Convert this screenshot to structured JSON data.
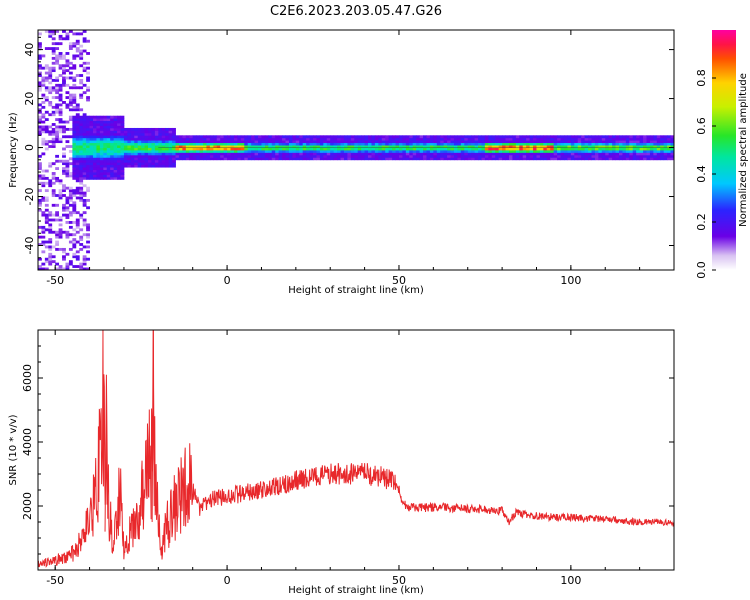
{
  "figure_title": "C2E6.2023.203.05.47.G26",
  "chart_data": [
    {
      "type": "heatmap",
      "title": "",
      "xlabel": "Height of straight line (km)",
      "ylabel": "Frequency (Hz)",
      "xlim": [
        -55,
        130
      ],
      "ylim": [
        -50,
        48
      ],
      "xticks": [
        -50,
        0,
        50,
        100
      ],
      "xtick_labels": [
        "-50",
        "0",
        "50",
        "100"
      ],
      "yticks": [
        -40,
        -20,
        0,
        20,
        40
      ],
      "ytick_labels": [
        "-40",
        "-20",
        "0",
        "20",
        "40"
      ],
      "grid": false,
      "colormap": "hsv-like (violet to red)",
      "colorbar": {
        "label": "Normalized spectral amplitude",
        "range": [
          0,
          1
        ],
        "ticks": [
          0.0,
          0.2,
          0.4,
          0.6,
          0.8
        ],
        "tick_labels": [
          "0.0",
          "0.2",
          "0.4",
          "0.6",
          "0.8"
        ]
      },
      "ridge": {
        "frequency_hz": 0,
        "segments": [
          {
            "x_start": -45,
            "x_end": -30,
            "amplitude": 0.5,
            "spread_hz": 8
          },
          {
            "x_start": -30,
            "x_end": -15,
            "amplitude": 0.55,
            "spread_hz": 5
          },
          {
            "x_start": -15,
            "x_end": 5,
            "amplitude": 0.85,
            "spread_hz": 3
          },
          {
            "x_start": 5,
            "x_end": 75,
            "amplitude": 0.55,
            "spread_hz": 3
          },
          {
            "x_start": 75,
            "x_end": 95,
            "amplitude": 0.9,
            "spread_hz": 3
          },
          {
            "x_start": 95,
            "x_end": 130,
            "amplitude": 0.6,
            "spread_hz": 3
          }
        ],
        "noise_region_x": [
          -55,
          -40
        ]
      }
    },
    {
      "type": "line",
      "title": "",
      "xlabel": "Height of straight line (km)",
      "ylabel": "SNR (10 * v/v)",
      "xlim": [
        -55,
        130
      ],
      "ylim": [
        0,
        7500
      ],
      "xticks": [
        -50,
        0,
        50,
        100
      ],
      "xtick_labels": [
        "-50",
        "0",
        "50",
        "100"
      ],
      "yticks": [
        2000,
        4000,
        6000
      ],
      "ytick_labels": [
        "2000",
        "4000",
        "6000"
      ],
      "grid": false,
      "series": [
        {
          "color": "#e8282b",
          "x": [
            -55,
            -50,
            -45,
            -42,
            -40,
            -38,
            -37,
            -36,
            -35,
            -34,
            -33,
            -32,
            -31,
            -30,
            -28,
            -26,
            -24,
            -23,
            -22,
            -21.5,
            -21,
            -20,
            -19,
            -18,
            -16,
            -14,
            -12,
            -10,
            -8,
            -5,
            0,
            5,
            10,
            15,
            20,
            25,
            30,
            35,
            40,
            45,
            48,
            50,
            51,
            52,
            55,
            60,
            65,
            70,
            75,
            80,
            82,
            84,
            86,
            88,
            90,
            95,
            100,
            105,
            110,
            115,
            120,
            125,
            130
          ],
          "y": [
            200,
            300,
            500,
            900,
            1500,
            2500,
            3500,
            5800,
            2800,
            1500,
            800,
            1800,
            2600,
            500,
            1200,
            1800,
            2500,
            3500,
            3000,
            7500,
            2800,
            2200,
            600,
            1200,
            1800,
            2200,
            2800,
            2500,
            1900,
            2200,
            2300,
            2400,
            2500,
            2600,
            2800,
            2900,
            3000,
            3000,
            3000,
            2900,
            2800,
            2500,
            2100,
            2000,
            1950,
            1950,
            1950,
            1900,
            1900,
            1850,
            1500,
            1800,
            1750,
            1700,
            1700,
            1650,
            1650,
            1600,
            1600,
            1550,
            1500,
            1500,
            1450
          ]
        }
      ]
    }
  ]
}
